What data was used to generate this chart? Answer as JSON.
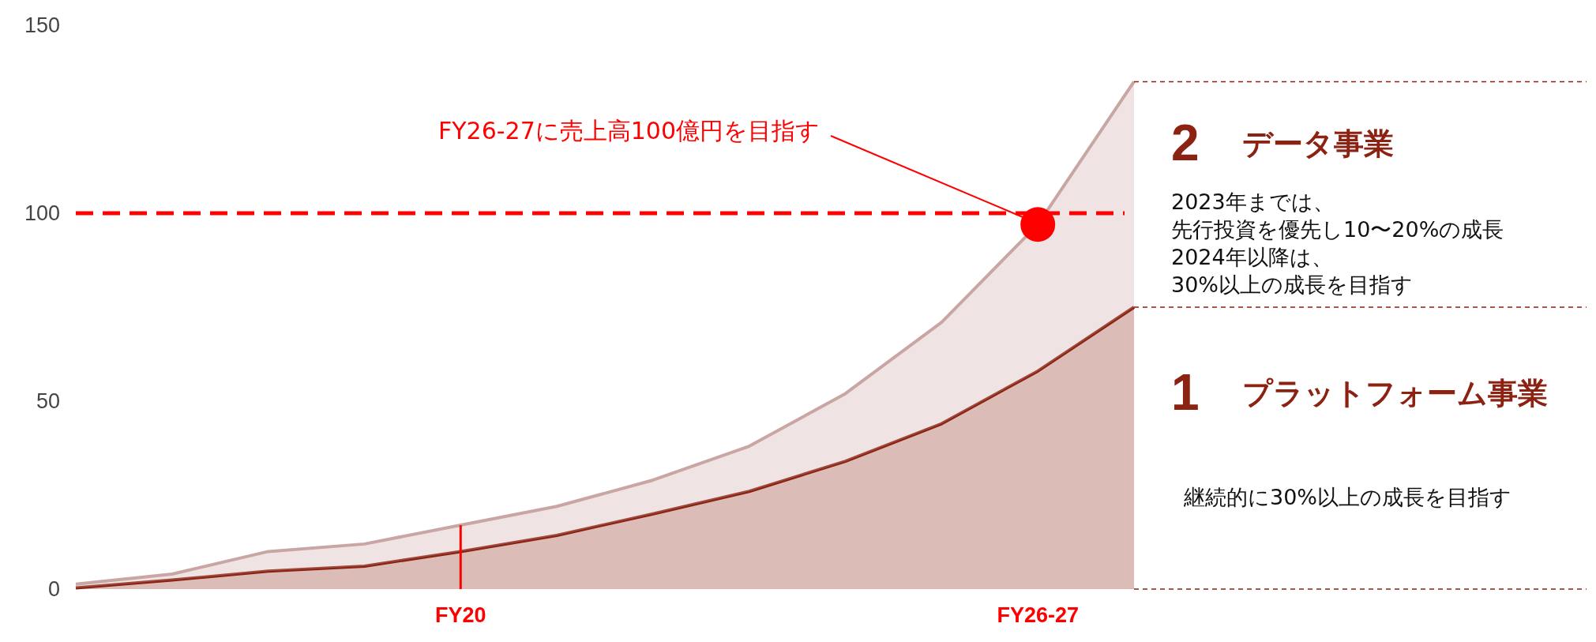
{
  "chart_data": {
    "type": "area",
    "stacked": true,
    "categories": [
      null,
      null,
      null,
      null,
      "FY20",
      null,
      null,
      null,
      null,
      null,
      "FY26-27",
      null
    ],
    "series": [
      {
        "name": "プラットフォーム事業",
        "color": "#8b2212",
        "values": [
          0.3,
          2.4,
          4.8,
          6.1,
          10,
          14.3,
          20,
          26,
          34,
          44,
          58,
          75
        ]
      },
      {
        "name": "データ事業",
        "color": "#c9a6a3",
        "values": [
          1,
          1.6,
          5.2,
          5.9,
          7,
          7.7,
          9,
          12,
          18,
          27,
          39,
          60
        ]
      },
      {
        "type": "scatter",
        "color": "#ff0000",
        "marker": "circle",
        "x": [
          "FY26-27"
        ],
        "values": [
          97
        ]
      }
    ],
    "ylim": [
      0,
      150
    ],
    "yticks": [
      0,
      50,
      100,
      150
    ],
    "grid": false,
    "legend": false,
    "ref_lines": [
      {
        "axis": "y",
        "value": 100,
        "color": "#ff0000",
        "line_style": "dashed"
      },
      {
        "axis": "x",
        "value": "FY20",
        "color": "#ff0000",
        "line_style": "solid"
      }
    ],
    "annotations": [
      "FY26-27に売上高100億円を目指す",
      "2",
      "2023年までは、",
      "先行投資を優先し10〜20%の成長",
      "2024年以降は、",
      "30%以上の成長を目指す",
      "1",
      "継続的に30%以上の成長を目指す"
    ]
  }
}
